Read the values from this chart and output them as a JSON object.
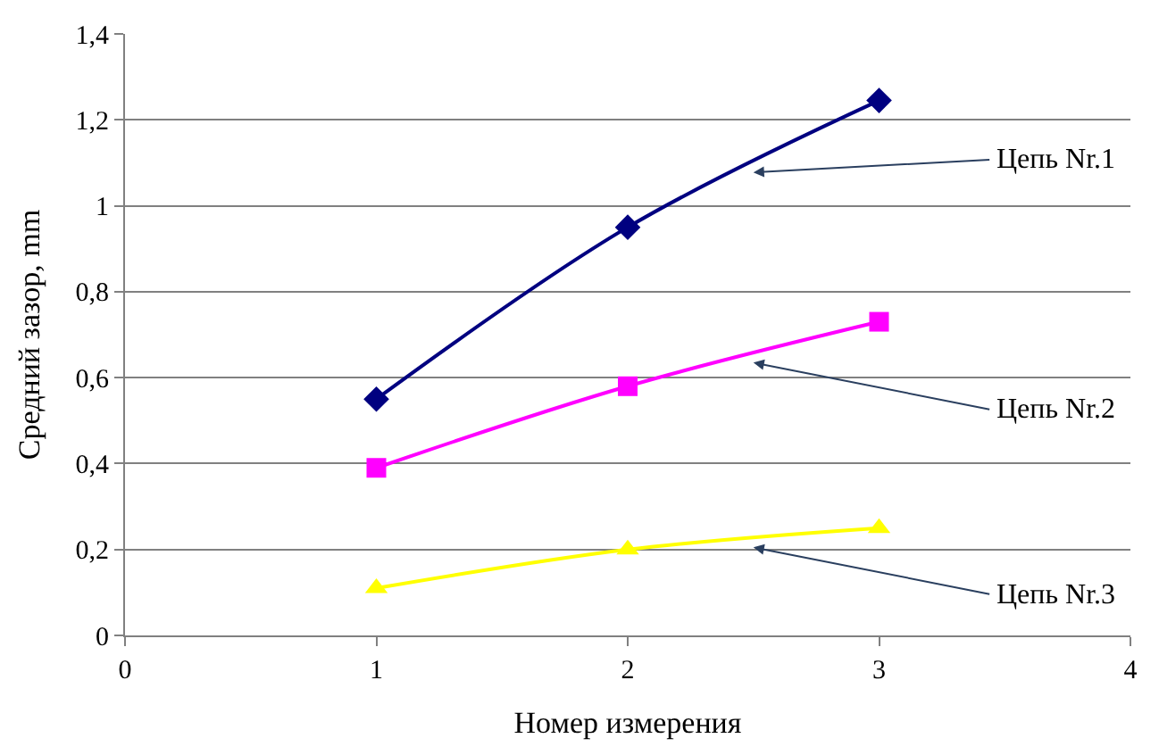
{
  "chart_data": {
    "type": "line",
    "xlabel": "Номер измерения",
    "ylabel": "Средний зазор, mm",
    "x": [
      1,
      2,
      3
    ],
    "series": [
      {
        "name": "Цепь Nr.1",
        "color": "#000080",
        "values": [
          0.55,
          0.95,
          1.245
        ],
        "marker": "diamond"
      },
      {
        "name": "Цепь Nr.2",
        "color": "#ff00ff",
        "values": [
          0.39,
          0.58,
          0.73
        ],
        "marker": "square"
      },
      {
        "name": "Цепь Nr.3",
        "color": "#ffff00",
        "values": [
          0.11,
          0.2,
          0.25
        ],
        "marker": "triangle"
      }
    ],
    "xlim": [
      0,
      4
    ],
    "xticks": [
      0,
      1,
      2,
      3,
      4
    ],
    "ylim": [
      0,
      1.4
    ],
    "yticks": [
      0,
      {
        "value": 0.2,
        "label": "0,2"
      },
      {
        "value": 0.4,
        "label": "0,4"
      },
      {
        "value": 0.6,
        "label": "0,6"
      },
      {
        "value": 0.8,
        "label": "0,8"
      },
      1,
      {
        "value": 1.2,
        "label": "1,2"
      },
      {
        "value": 1.4,
        "label": "1,4"
      }
    ],
    "grid": "y"
  }
}
